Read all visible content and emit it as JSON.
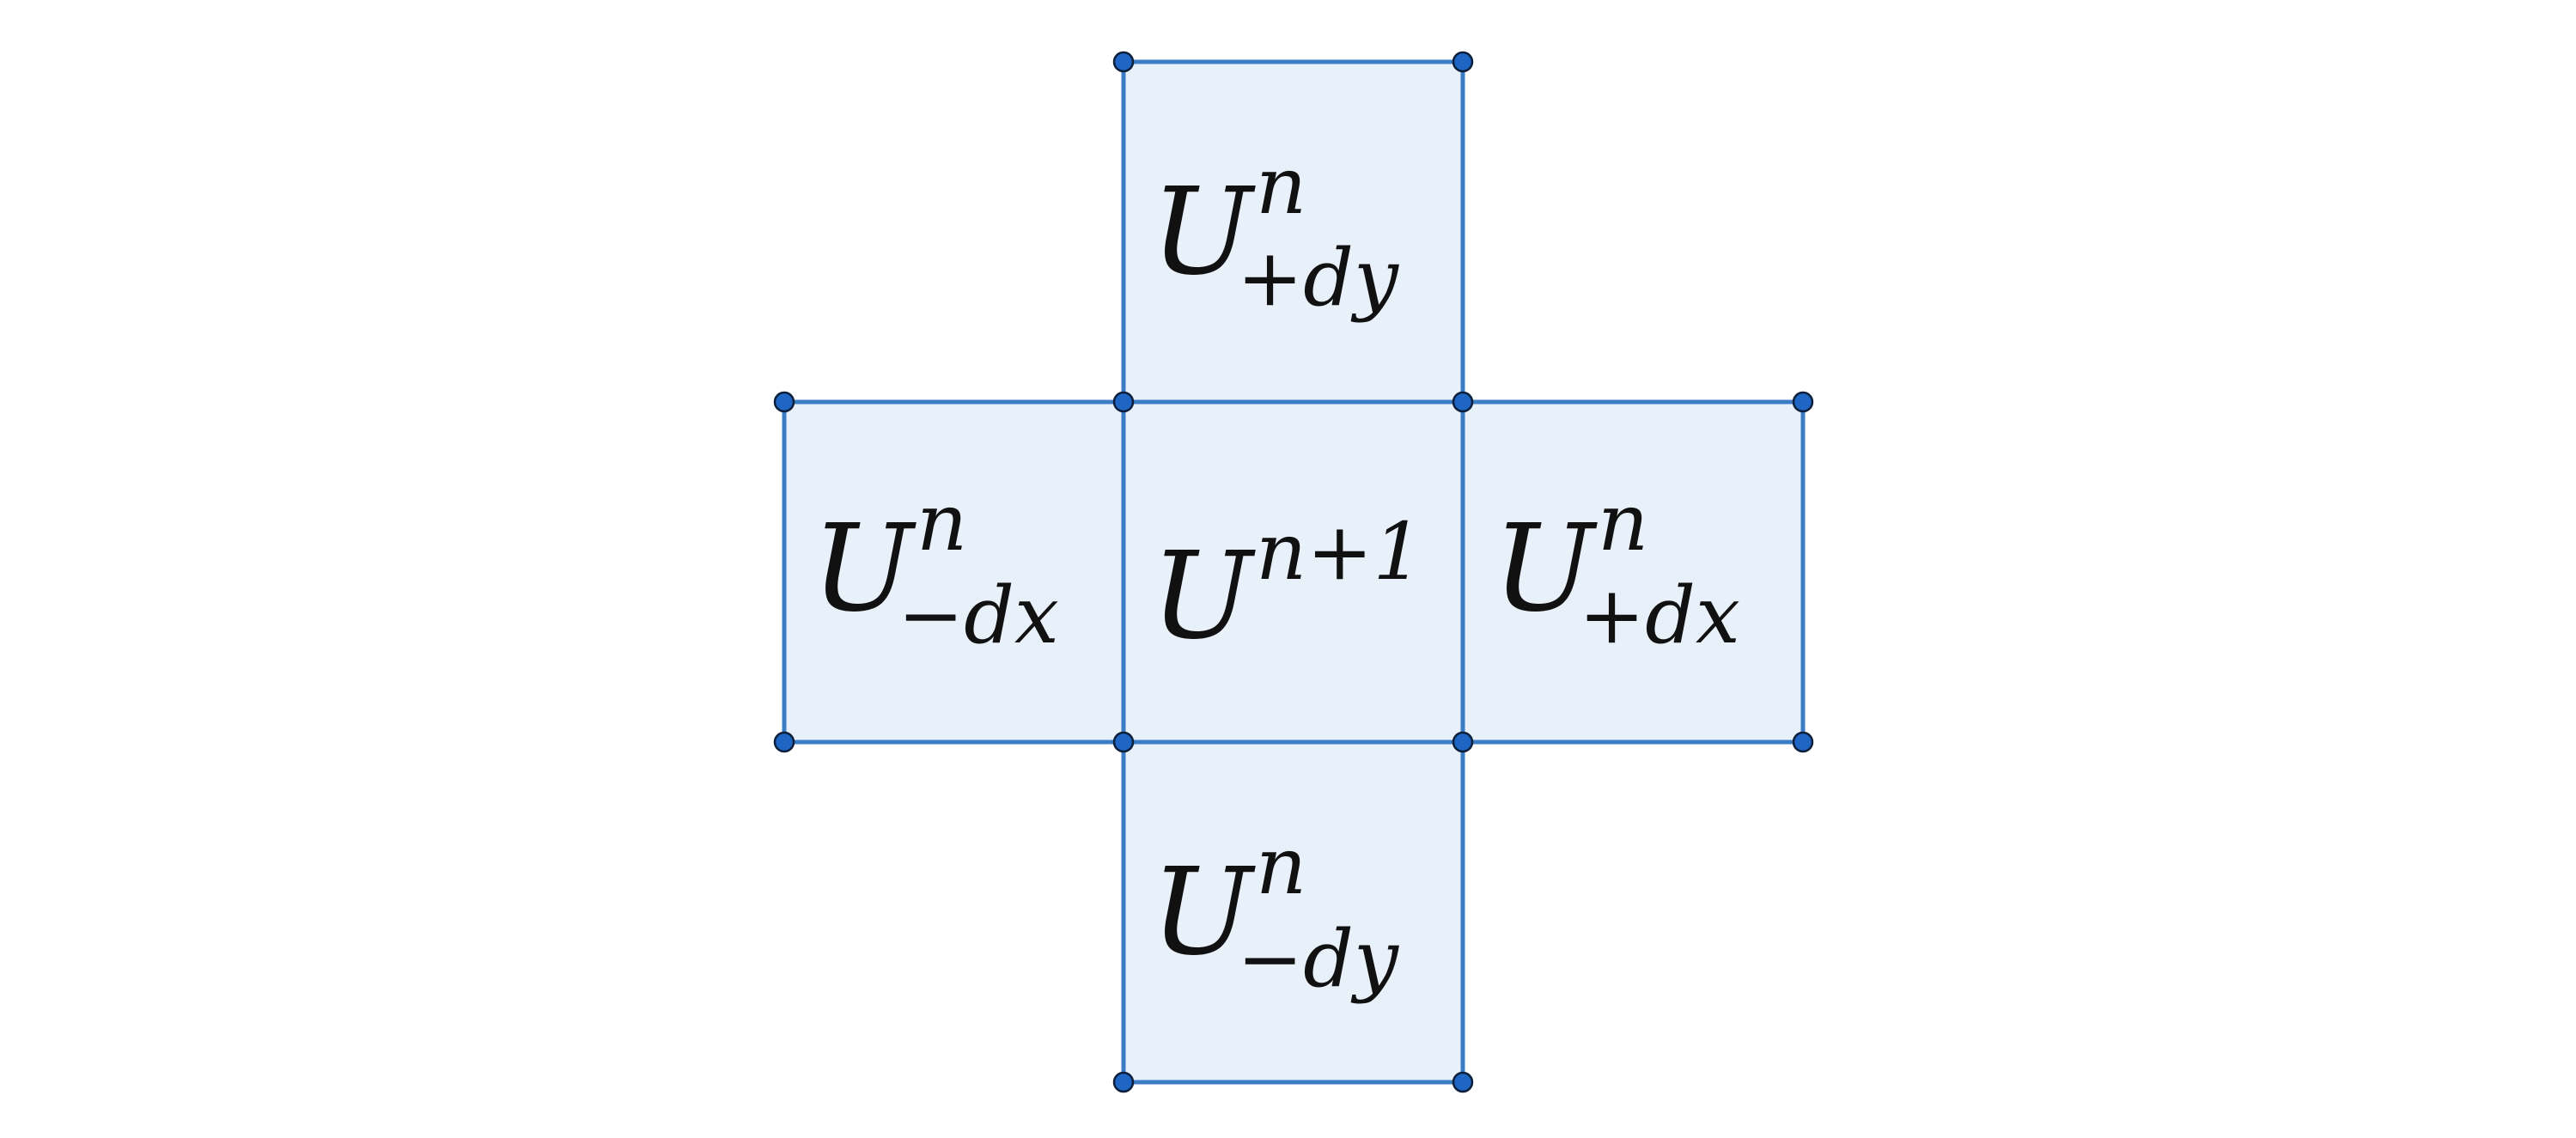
{
  "colors": {
    "cell_fill": "#e8f0f9",
    "cell_stroke": "#3a7dc5",
    "vertex_fill": "#1f66c4",
    "vertex_stroke": "#0b1f3a"
  },
  "cells": {
    "top": {
      "base": "U",
      "sup": "n",
      "sub": "+dy"
    },
    "left": {
      "base": "U",
      "sup": "n",
      "sub": "−dx"
    },
    "center": {
      "base": "U",
      "sup": "n+1",
      "sub": ""
    },
    "right": {
      "base": "U",
      "sup": "n",
      "sub": "+dx"
    },
    "bottom": {
      "base": "U",
      "sup": "n",
      "sub": "−dy"
    }
  }
}
